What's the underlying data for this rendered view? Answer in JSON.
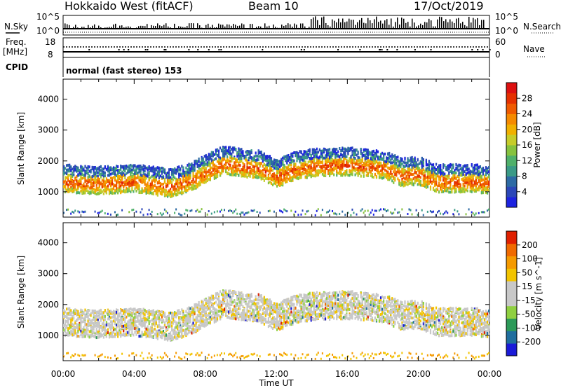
{
  "header": {
    "title": "Hokkaido West (fitACF)",
    "beam": "Beam 10",
    "date": "17/Oct/2019"
  },
  "mini_panels": {
    "nsky_label": "N.Sky",
    "freq_label_1": "Freq.",
    "freq_label_2": "[MHz]",
    "cpid_label": "CPID",
    "left_ticks_top": [
      "10^5",
      "10^0"
    ],
    "left_ticks_freq": [
      "18",
      "8"
    ],
    "right_ticks_top": [
      "10^5",
      "10^0"
    ],
    "right_ticks_freq": [
      "60",
      "0"
    ],
    "nsearch_label": "N.Search",
    "nave_label": "Nave",
    "cpid_text": "normal (fast stereo) 153"
  },
  "colors": {
    "power_bar": [
      "#1d23e0",
      "#2b47b8",
      "#2d6aa4",
      "#3a9a86",
      "#4fb06a",
      "#86c23e",
      "#c6cc2a",
      "#f0b000",
      "#f58a00",
      "#ef5a00",
      "#e53000",
      "#dd1010"
    ],
    "velocity_bar": [
      "#1a1ad8",
      "#1f6e9e",
      "#2c9a58",
      "#8fd040",
      "#c8c8c8",
      "#c8c8c8",
      "#f2c400",
      "#f59a00",
      "#f06a00",
      "#e02000"
    ]
  },
  "chart_data": [
    {
      "type": "heatmap",
      "title": "",
      "xlabel": "Time UT",
      "ylabel": "Slant Range [km]",
      "x_ticks": [
        "00:00",
        "04:00",
        "08:00",
        "12:00",
        "16:00",
        "20:00",
        "00:00"
      ],
      "xlim_hours": [
        0,
        24
      ],
      "y_ticks": [
        "1000",
        "2000",
        "3000",
        "4000"
      ],
      "ylim": [
        180,
        4650
      ],
      "colorbar_label": "Power [dB]",
      "colorbar_ticks": [
        "4",
        "8",
        "12",
        "16",
        "20",
        "24",
        "28"
      ],
      "colorbar_range": [
        0,
        32
      ],
      "scatter_band_center_km": [
        [
          0,
          1300
        ],
        [
          2,
          1230
        ],
        [
          4,
          1300
        ],
        [
          6,
          1150
        ],
        [
          7,
          1300
        ],
        [
          8,
          1600
        ],
        [
          9,
          1900
        ],
        [
          10,
          1800
        ],
        [
          11,
          1750
        ],
        [
          12,
          1450
        ],
        [
          13,
          1700
        ],
        [
          14,
          1800
        ],
        [
          16,
          1850
        ],
        [
          18,
          1750
        ],
        [
          19,
          1500
        ],
        [
          20,
          1550
        ],
        [
          21,
          1300
        ],
        [
          23,
          1300
        ],
        [
          24,
          1250
        ]
      ]
    },
    {
      "type": "heatmap",
      "title": "",
      "xlabel": "Time UT",
      "ylabel": "Slant Range [km]",
      "x_ticks": [
        "00:00",
        "04:00",
        "08:00",
        "12:00",
        "16:00",
        "20:00",
        "00:00"
      ],
      "xlim_hours": [
        0,
        24
      ],
      "y_ticks": [
        "1000",
        "2000",
        "3000",
        "4000"
      ],
      "ylim": [
        180,
        4650
      ],
      "colorbar_label": "Velocity [m s^-1]",
      "colorbar_ticks": [
        "200",
        "100",
        "50",
        "15",
        "-15",
        "-50",
        "-100",
        "-200"
      ],
      "colorbar_range": [
        -250,
        250
      ]
    }
  ]
}
